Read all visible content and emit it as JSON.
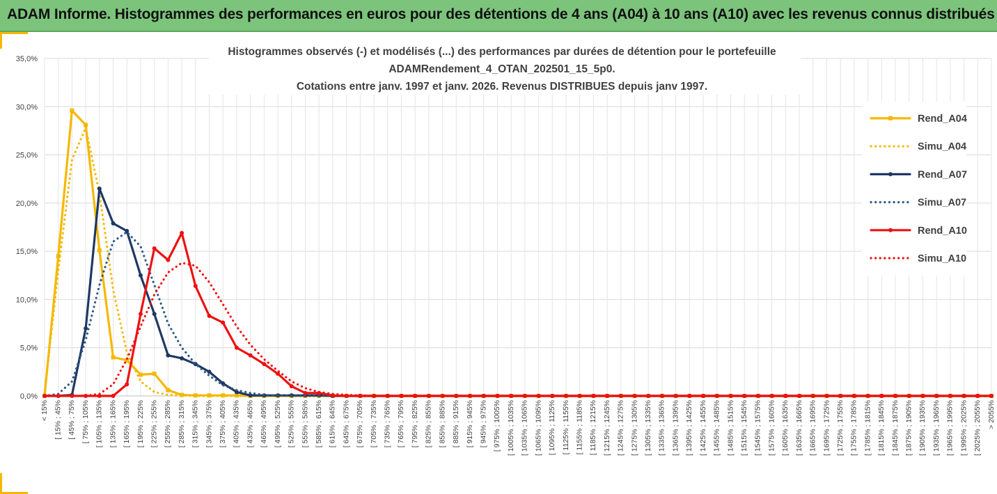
{
  "header": {
    "title": "ADAM Informe. Histogrammes des performances en euros pour des détentions de 4 ans (A04) à 10 ans (A10) avec les revenus connus distribués"
  },
  "colors": {
    "banner": "#7cc47c",
    "accent": "#f5b800",
    "A04": "#f5b800",
    "A07": "#1f3864",
    "A07_simu": "#2e5a87",
    "A10": "#ee1111"
  },
  "chart_data": {
    "type": "line",
    "title_lines": [
      "Histogrammes observés (-) et modélisés (...) des performances par durées de détention pour le portefeuille",
      "ADAMRendement_4_OTAN_202501_15_5p0.",
      "Cotations  entre janv. 1997 et janv. 2026. Revenus DISTRIBUES depuis janv 1997."
    ],
    "ylim": [
      0,
      35
    ],
    "yticks": [
      "0,0%",
      "5,0%",
      "10,0%",
      "15,0%",
      "20,0%",
      "25,0%",
      "30,0%",
      "35,0%"
    ],
    "grid": true,
    "legend_position": "right",
    "categories": [
      "< 15%",
      "[ 15% ; 45%",
      "[ 45% ; 75%",
      "[ 75% ; 105%",
      "[ 105% ; 135%",
      "[ 135% ; 165%",
      "[ 165% ; 195%",
      "[ 195% ; 225%",
      "[ 225% ; 255%",
      "[ 255% ; 285%",
      "[ 285% ; 315%",
      "[ 315% ; 345%",
      "[ 345% ; 375%",
      "[ 375% ; 405%",
      "[ 405% ; 435%",
      "[ 435% ; 465%",
      "[ 465% ; 495%",
      "[ 495% ; 525%",
      "[ 525% ; 555%",
      "[ 555% ; 585%",
      "[ 585% ; 615%",
      "[ 615% ; 645%",
      "[ 645% ; 675%",
      "[ 675% ; 705%",
      "[ 705% ; 735%",
      "[ 735% ; 765%",
      "[ 765% ; 795%",
      "[ 795% ; 825%",
      "[ 825% ; 855%",
      "[ 855% ; 885%",
      "[ 885% ; 915%",
      "[ 915% ; 945%",
      "[ 945% ; 975%",
      "[ 975% ; 1005%",
      "[ 1005% ; 1035%",
      "[ 1035% ; 1065%",
      "[ 1065% ; 1095%",
      "[ 1095% ; 1125%",
      "[ 1125% ; 1155%",
      "[ 1155% ; 1185%",
      "[ 1185% ; 1215%",
      "[ 1215% ; 1245%",
      "[ 1245% ; 1275%",
      "[ 1275% ; 1305%",
      "[ 1305% ; 1335%",
      "[ 1335% ; 1365%",
      "[ 1365% ; 1395%",
      "[ 1395% ; 1425%",
      "[ 1425% ; 1455%",
      "[ 1455% ; 1485%",
      "[ 1485% ; 1515%",
      "[ 1515% ; 1545%",
      "[ 1545% ; 1575%",
      "[ 1575% ; 1605%",
      "[ 1605% ; 1635%",
      "[ 1635% ; 1665%",
      "[ 1665% ; 1695%",
      "[ 1695% ; 1725%",
      "[ 1725% ; 1755%",
      "[ 1755% ; 1785%",
      "[ 1785% ; 1815%",
      "[ 1815% ; 1845%",
      "[ 1845% ; 1875%",
      "[ 1875% ; 1905%",
      "[ 1905% ; 1935%",
      "[ 1935% ; 1965%",
      "[ 1965% ; 1995%",
      "[ 1995% ; 2025%",
      "[ 2025% ; 2055%",
      "> 2055%"
    ],
    "series": [
      {
        "name": "Rend_A04",
        "style": "solid",
        "marker": "square",
        "color": "#f5b800",
        "values": [
          0,
          14.5,
          29.6,
          28.1,
          15.1,
          4.0,
          3.7,
          2.2,
          2.3,
          0.6,
          0.1,
          0.05,
          0.05,
          0.05,
          0.05,
          0,
          0,
          0,
          0,
          0,
          0,
          0,
          0,
          0,
          0,
          0,
          0,
          0,
          0,
          0,
          0,
          0,
          0,
          0,
          0,
          0,
          0,
          0,
          0,
          0,
          0,
          0,
          0,
          0,
          0,
          0,
          0,
          0,
          0,
          0,
          0,
          0,
          0,
          0,
          0,
          0,
          0,
          0,
          0,
          0,
          0,
          0,
          0,
          0,
          0,
          0,
          0,
          0,
          0,
          0
        ]
      },
      {
        "name": "Simu_A04",
        "style": "dotted",
        "marker": "none",
        "color": "#f5b800",
        "values": [
          0.3,
          13.0,
          24.5,
          27.8,
          21.0,
          11.0,
          4.5,
          1.5,
          0.4,
          0.1,
          0.05,
          0,
          0,
          0,
          0,
          0,
          0,
          0,
          0,
          0,
          0,
          0,
          0,
          0,
          0,
          0,
          0,
          0,
          0,
          0,
          0,
          0,
          0,
          0,
          0,
          0,
          0,
          0,
          0,
          0,
          0,
          0,
          0,
          0,
          0,
          0,
          0,
          0,
          0,
          0,
          0,
          0,
          0,
          0,
          0,
          0,
          0,
          0,
          0,
          0,
          0,
          0,
          0,
          0,
          0,
          0,
          0,
          0,
          0,
          0
        ]
      },
      {
        "name": "Rend_A07",
        "style": "solid",
        "marker": "circle",
        "color": "#1f3864",
        "values": [
          0,
          0,
          0.1,
          7.0,
          21.5,
          17.9,
          17.1,
          12.5,
          8.5,
          4.2,
          3.9,
          3.3,
          2.5,
          1.3,
          0.4,
          0.05,
          0.05,
          0.05,
          0.05,
          0.05,
          0.05,
          0,
          0,
          0,
          0,
          0,
          0,
          0,
          0,
          0,
          0,
          0,
          0,
          0,
          0,
          0,
          0,
          0,
          0,
          0,
          0,
          0,
          0,
          0,
          0,
          0,
          0,
          0,
          0,
          0,
          0,
          0,
          0,
          0,
          0,
          0,
          0,
          0,
          0,
          0,
          0,
          0,
          0,
          0,
          0,
          0,
          0,
          0,
          0,
          0
        ]
      },
      {
        "name": "Simu_A07",
        "style": "dotted",
        "marker": "none",
        "color": "#2e5a87",
        "values": [
          0,
          0.2,
          1.5,
          5.8,
          11.5,
          16.0,
          17.0,
          15.5,
          11.5,
          7.5,
          5.0,
          3.3,
          2.1,
          1.1,
          0.6,
          0.3,
          0.1,
          0.05,
          0,
          0,
          0,
          0,
          0,
          0,
          0,
          0,
          0,
          0,
          0,
          0,
          0,
          0,
          0,
          0,
          0,
          0,
          0,
          0,
          0,
          0,
          0,
          0,
          0,
          0,
          0,
          0,
          0,
          0,
          0,
          0,
          0,
          0,
          0,
          0,
          0,
          0,
          0,
          0,
          0,
          0,
          0,
          0,
          0,
          0,
          0,
          0,
          0,
          0,
          0,
          0
        ]
      },
      {
        "name": "Rend_A10",
        "style": "solid",
        "marker": "circle",
        "color": "#ee1111",
        "values": [
          0,
          0,
          0,
          0,
          0,
          0,
          1.2,
          8.5,
          15.3,
          14.1,
          16.9,
          11.4,
          8.3,
          7.6,
          5.0,
          4.2,
          3.3,
          2.3,
          1.0,
          0.3,
          0.3,
          0.05,
          0,
          0,
          0,
          0,
          0,
          0,
          0,
          0,
          0,
          0,
          0,
          0,
          0,
          0,
          0,
          0,
          0,
          0,
          0,
          0,
          0,
          0,
          0,
          0,
          0,
          0,
          0,
          0,
          0,
          0,
          0,
          0,
          0,
          0,
          0,
          0,
          0,
          0,
          0,
          0,
          0,
          0,
          0,
          0,
          0,
          0,
          0,
          0
        ]
      },
      {
        "name": "Simu_A10",
        "style": "dotted",
        "marker": "none",
        "color": "#ee1111",
        "values": [
          0,
          0,
          0,
          0,
          0.2,
          1.2,
          3.8,
          7.2,
          10.5,
          12.8,
          13.8,
          13.5,
          11.8,
          9.5,
          7.2,
          5.3,
          3.8,
          2.6,
          1.5,
          0.8,
          0.4,
          0.2,
          0.1,
          0.05,
          0,
          0,
          0,
          0,
          0,
          0,
          0,
          0,
          0,
          0,
          0,
          0,
          0,
          0,
          0,
          0,
          0,
          0,
          0,
          0,
          0,
          0,
          0,
          0,
          0,
          0,
          0,
          0,
          0,
          0,
          0,
          0,
          0,
          0,
          0,
          0,
          0,
          0,
          0,
          0,
          0,
          0,
          0,
          0,
          0,
          0
        ]
      }
    ]
  }
}
